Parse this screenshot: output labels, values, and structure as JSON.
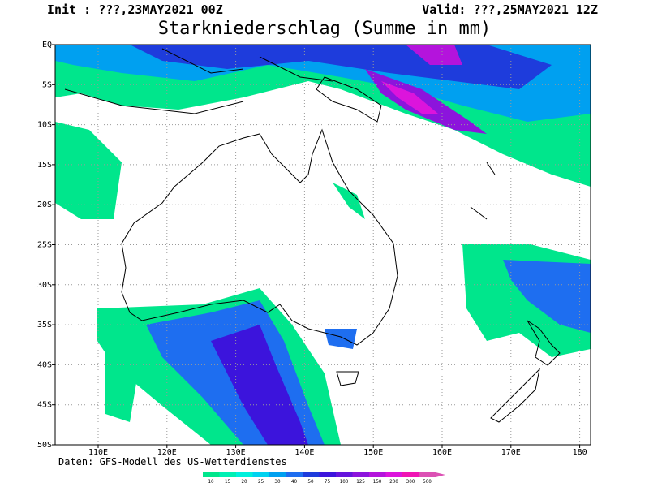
{
  "header": {
    "init": "Init : ???,23MAY2021 00Z",
    "valid": "Valid: ???,25MAY2021 12Z",
    "title": "Starkniederschlag (Summe in mm)"
  },
  "map": {
    "lat_labels": [
      "EQ",
      "5S",
      "10S",
      "15S",
      "20S",
      "25S",
      "30S",
      "35S",
      "40S",
      "45S",
      "50S"
    ],
    "lon_labels": [
      "110E",
      "120E",
      "130E",
      "140E",
      "150E",
      "160E",
      "170E",
      "180"
    ]
  },
  "footer": {
    "source": "Daten: GFS-Modell des US-Wetterdienstes"
  },
  "colorbar": {
    "labels": [
      10,
      15,
      20,
      25,
      30,
      40,
      50,
      75,
      100,
      125,
      150,
      200,
      300,
      500
    ],
    "colors": [
      "#00e68c",
      "#00f0b4",
      "#00f0dc",
      "#00d2f0",
      "#00a0f0",
      "#1e6ef0",
      "#1e3cdc",
      "#3c14dc",
      "#6414dc",
      "#8c14dc",
      "#b414dc",
      "#dc14dc",
      "#f014b4",
      "#dc50b4"
    ]
  }
}
